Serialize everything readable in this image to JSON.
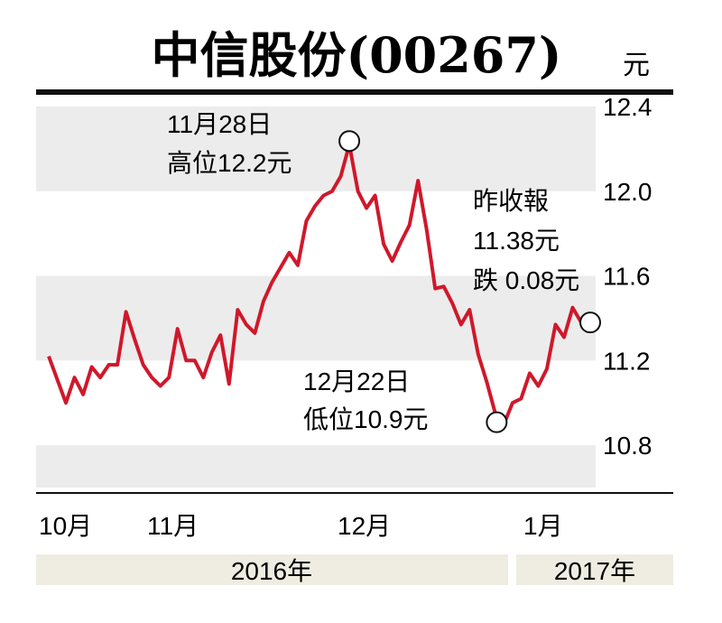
{
  "chart_data": {
    "type": "line",
    "title": "中信股份(00267)",
    "unit": "元",
    "ylim": [
      10.6,
      12.4
    ],
    "yticks": [
      "12.4",
      "12.0",
      "11.6",
      "11.2",
      "10.8"
    ],
    "ytick_values": [
      12.4,
      12.0,
      11.6,
      11.2,
      10.8
    ],
    "x_month_labels": [
      "10月",
      "11月",
      "12月",
      "1月"
    ],
    "x_year_labels": [
      "2016年",
      "2017年"
    ],
    "grid": "horizontal bands",
    "line_color": "#d0182b",
    "band_color": "#ececec",
    "series": [
      {
        "values": [
          11.22,
          11.11,
          11.0,
          11.12,
          11.04,
          11.17,
          11.12,
          11.18,
          11.18,
          11.43,
          11.3,
          11.18,
          11.12,
          11.08,
          11.12,
          11.35,
          11.2,
          11.2,
          11.12,
          11.24,
          11.32,
          11.09,
          11.44,
          11.37,
          11.33,
          11.48,
          11.57,
          11.64,
          11.71,
          11.65,
          11.86,
          11.93,
          11.98,
          12.0,
          12.07,
          12.22,
          12.0,
          11.92,
          11.98,
          11.75,
          11.67,
          11.76,
          11.84,
          12.05,
          11.82,
          11.54,
          11.55,
          11.47,
          11.37,
          11.44,
          11.23,
          11.1,
          10.95,
          10.9,
          11.0,
          11.02,
          11.14,
          11.08,
          11.16,
          11.37,
          11.31,
          11.45,
          11.38
        ]
      }
    ],
    "annotations": [
      {
        "line1": "11月28日",
        "line2": "高位12.2元",
        "value": 12.22
      },
      {
        "line1": "12月22日",
        "line2": "低位10.9元",
        "value": 10.9
      },
      {
        "line1": "昨收報",
        "line2": "11.38元",
        "line3": "跌 0.08元",
        "value": 11.38
      }
    ]
  }
}
